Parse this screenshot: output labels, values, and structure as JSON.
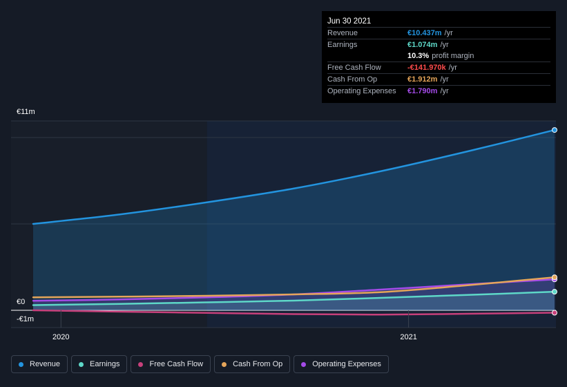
{
  "chart_data": {
    "type": "area",
    "x": [
      2019.92,
      2020.17,
      2020.42,
      2020.67,
      2020.92,
      2021.17,
      2021.42
    ],
    "xlim": [
      2019.92,
      2021.42
    ],
    "x_ticks": [
      {
        "value": 2020.0,
        "label": "2020"
      },
      {
        "value": 2021.0,
        "label": "2021"
      }
    ],
    "ylim": [
      -1.0,
      11.0
    ],
    "y_tick_labels": [
      {
        "value": 11,
        "label": "€11m"
      },
      {
        "value": 0,
        "label": "€0"
      },
      {
        "value": -1,
        "label": "-€1m"
      }
    ],
    "grid_values": [
      10,
      5
    ],
    "past_boundary": 2020.42,
    "series": [
      {
        "name": "Revenue",
        "color": "#2394df",
        "fill": true,
        "values": [
          5.0,
          5.55,
          6.25,
          7.05,
          8.05,
          9.2,
          10.437
        ]
      },
      {
        "name": "Earnings",
        "color": "#5ed8c8",
        "fill": true,
        "values": [
          0.3,
          0.37,
          0.46,
          0.56,
          0.72,
          0.89,
          1.074
        ]
      },
      {
        "name": "Free Cash Flow",
        "color": "#c7407b",
        "fill": false,
        "values": [
          0.0,
          -0.08,
          -0.15,
          -0.22,
          -0.25,
          -0.2,
          -0.142
        ]
      },
      {
        "name": "Cash From Op",
        "color": "#e5a55a",
        "fill": false,
        "values": [
          0.75,
          0.79,
          0.84,
          0.92,
          1.05,
          1.45,
          1.912
        ]
      },
      {
        "name": "Operating Expenses",
        "color": "#a44be8",
        "fill": true,
        "values": [
          0.55,
          0.63,
          0.75,
          0.92,
          1.2,
          1.5,
          1.79
        ]
      }
    ]
  },
  "tooltip": {
    "date": "Jun 30 2021",
    "rows": [
      {
        "label": "Revenue",
        "value": "€10.437m",
        "unit": "/yr",
        "color": "#2394df"
      },
      {
        "label": "Earnings",
        "value": "€1.074m",
        "unit": "/yr",
        "color": "#5ed8c8"
      },
      {
        "label": "",
        "value": "10.3%",
        "unit": "profit margin",
        "color": "#ffffff"
      },
      {
        "label": "Free Cash Flow",
        "value": "-€141.970k",
        "unit": "/yr",
        "color": "#ff4c4c"
      },
      {
        "label": "Cash From Op",
        "value": "€1.912m",
        "unit": "/yr",
        "color": "#e5a55a"
      },
      {
        "label": "Operating Expenses",
        "value": "€1.790m",
        "unit": "/yr",
        "color": "#a44be8"
      }
    ]
  },
  "legend": [
    {
      "label": "Revenue",
      "color": "#2394df"
    },
    {
      "label": "Earnings",
      "color": "#5ed8c8"
    },
    {
      "label": "Free Cash Flow",
      "color": "#c7407b"
    },
    {
      "label": "Cash From Op",
      "color": "#e5a55a"
    },
    {
      "label": "Operating Expenses",
      "color": "#a44be8"
    }
  ]
}
